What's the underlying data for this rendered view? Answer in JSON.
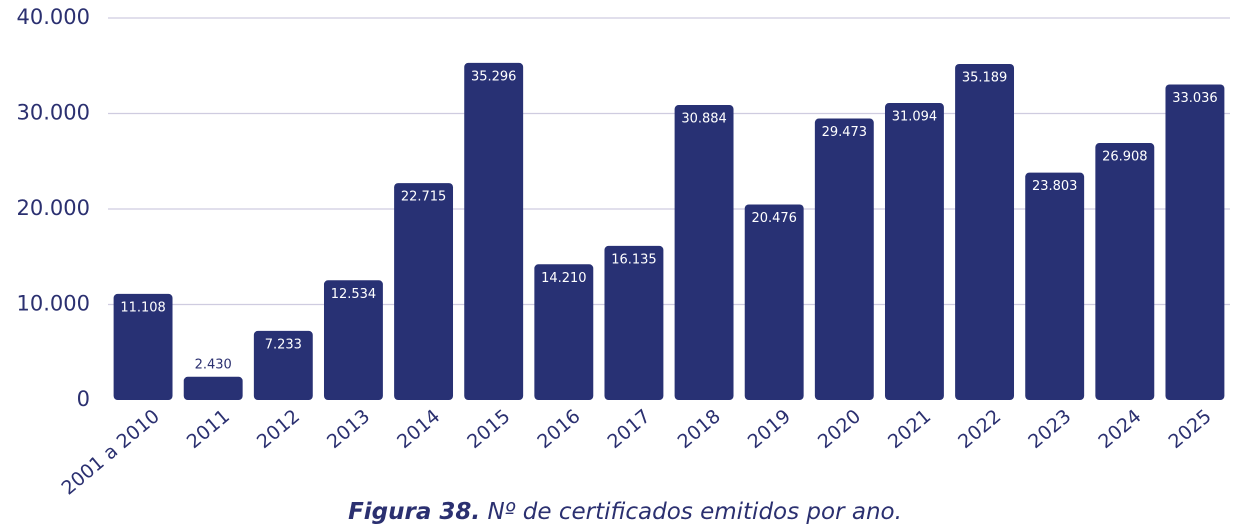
{
  "chart_data": {
    "type": "bar",
    "categories": [
      "2001 a 2010",
      "2011",
      "2012",
      "2013",
      "2014",
      "2015",
      "2016",
      "2017",
      "2018",
      "2019",
      "2020",
      "2021",
      "2022",
      "2023",
      "2024",
      "2025"
    ],
    "values": [
      11108,
      2430,
      7233,
      12534,
      22715,
      35296,
      14210,
      16135,
      30884,
      20476,
      29473,
      31094,
      35189,
      23803,
      26908,
      33036
    ],
    "value_labels": [
      "11.108",
      "2.430",
      "7.233",
      "12.534",
      "22.715",
      "35.296",
      "14.210",
      "16.135",
      "30.884",
      "20.476",
      "29.473",
      "31.094",
      "35.189",
      "23.803",
      "26.908",
      "33.036"
    ],
    "color": "#283174",
    "ylim": [
      0,
      40000
    ],
    "yticks": [
      0,
      {
        "value": 10000,
        "label": "10.000"
      },
      {
        "value": 20000,
        "label": "20.000"
      },
      {
        "value": 30000,
        "label": "30.000"
      },
      {
        "value": 40000,
        "label": "40.000"
      }
    ],
    "grid": true,
    "caption": {
      "label": "Figura 38.",
      "text": "Nº de certificados emitidos por ano."
    }
  }
}
